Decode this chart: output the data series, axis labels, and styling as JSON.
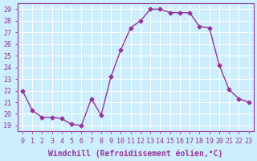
{
  "x": [
    0,
    1,
    2,
    3,
    4,
    5,
    6,
    7,
    8,
    9,
    10,
    11,
    12,
    13,
    14,
    15,
    16,
    17,
    18,
    19,
    20,
    21,
    22,
    23
  ],
  "y": [
    22.0,
    20.3,
    19.7,
    19.7,
    19.6,
    19.1,
    19.0,
    21.3,
    19.9,
    23.2,
    25.5,
    27.4,
    28.0,
    29.0,
    29.0,
    28.7,
    28.7,
    28.7,
    27.5,
    27.4,
    24.2,
    22.1,
    21.3,
    21.0
  ],
  "line_color": "#993399",
  "marker": "D",
  "marker_size": 2.5,
  "bg_color": "#cceeff",
  "grid_color": "#ffffff",
  "xlabel": "Windchill (Refroidissement éolien,°C)",
  "xlabel_color": "#993399",
  "ylabel_ticks": [
    19,
    20,
    21,
    22,
    23,
    24,
    25,
    26,
    27,
    28,
    29
  ],
  "xtick_labels": [
    "0",
    "1",
    "2",
    "3",
    "4",
    "5",
    "6",
    "7",
    "8",
    "9",
    "10",
    "11",
    "12",
    "13",
    "14",
    "15",
    "16",
    "17",
    "18",
    "19",
    "20",
    "21",
    "22",
    "23"
  ],
  "ylim": [
    18.5,
    29.5
  ],
  "xlim": [
    -0.5,
    23.5
  ],
  "tick_color": "#993399",
  "tick_fontsize": 6.0,
  "xlabel_fontsize": 7.0
}
